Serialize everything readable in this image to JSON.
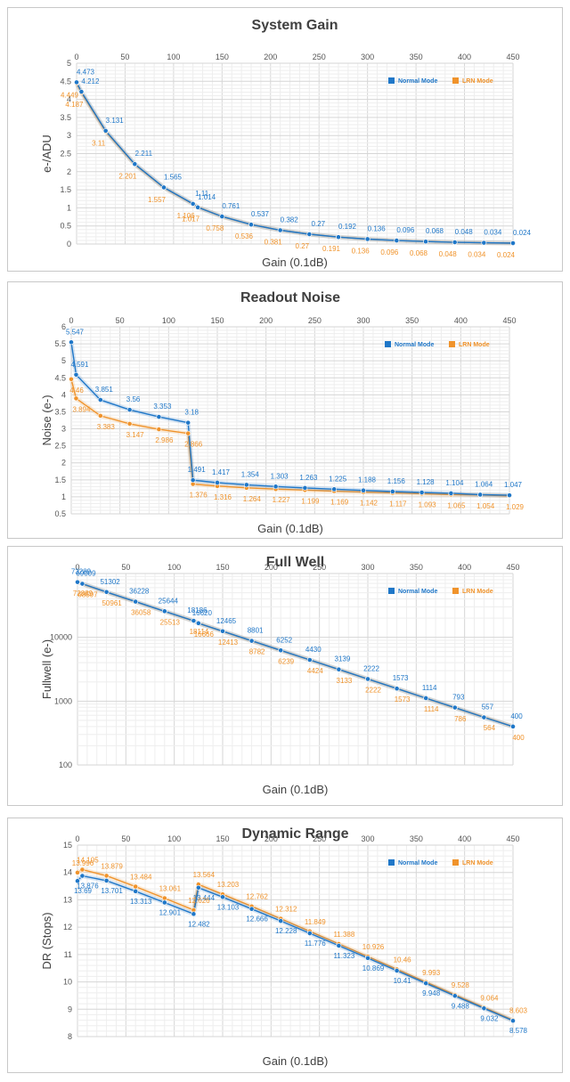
{
  "colors": {
    "normal": "#1f77c8",
    "lrn": "#f0932b",
    "grid": "#d6d6d6"
  },
  "legend": {
    "normal": "Normal Mode",
    "lrn": "LRN Mode"
  },
  "chart_data": [
    {
      "type": "line",
      "title": "System Gain",
      "xlabel": "Gain (0.1dB)",
      "ylabel": "e-/ADU",
      "xlim": [
        0,
        450
      ],
      "ylim": [
        0,
        5
      ],
      "xticks": [
        "0",
        "50",
        "100",
        "150",
        "200",
        "250",
        "300",
        "350",
        "400",
        "450"
      ],
      "yticks": [
        "0",
        "0.5",
        "1",
        "1.5",
        "2",
        "2.5",
        "3",
        "3.5",
        "4",
        "4.5",
        "5"
      ],
      "legend_position": "top-right",
      "series": [
        {
          "name": "Normal Mode",
          "x": [
            0,
            5,
            30,
            60,
            90,
            120,
            125,
            150,
            180,
            210,
            240,
            270,
            300,
            330,
            360,
            390,
            420,
            450
          ],
          "y": [
            4.473,
            4.212,
            3.131,
            2.211,
            1.565,
            1.11,
            1.014,
            0.761,
            0.537,
            0.382,
            0.27,
            0.192,
            0.136,
            0.096,
            0.068,
            0.048,
            0.034,
            0.024
          ],
          "labels": [
            "4.473",
            "4.212",
            "3.131",
            "2.211",
            "1.565",
            "1.11",
            "1.014",
            "0.761",
            "0.537",
            "0.382",
            "0.27",
            "0.192",
            "0.136",
            "0.096",
            "0.068",
            "0.048",
            "0.034",
            "0.024"
          ]
        },
        {
          "name": "LRN Mode",
          "x": [
            0,
            5,
            30,
            60,
            90,
            120,
            125,
            150,
            180,
            210,
            240,
            270,
            300,
            330,
            360,
            390,
            420,
            450
          ],
          "y": [
            4.449,
            4.187,
            3.11,
            2.201,
            1.557,
            1.106,
            1.017,
            0.758,
            0.536,
            0.381,
            0.27,
            0.191,
            0.136,
            0.096,
            0.068,
            0.048,
            0.034,
            0.024
          ],
          "labels": [
            "4.449",
            "4.187",
            "3.11",
            "2.201",
            "1.557",
            "1.106",
            "1.017",
            "0.758",
            "0.536",
            "0.381",
            "0.27",
            "0.191",
            "0.136",
            "0.096",
            "0.068",
            "0.048",
            "0.034",
            "0.024"
          ]
        }
      ]
    },
    {
      "type": "line",
      "title": "Readout Noise",
      "xlabel": "Gain (0.1dB)",
      "ylabel": "Noise (e-)",
      "xlim": [
        0,
        450
      ],
      "ylim": [
        0.5,
        6
      ],
      "xticks": [
        "0",
        "50",
        "100",
        "150",
        "200",
        "250",
        "300",
        "350",
        "400",
        "450"
      ],
      "yticks": [
        "0.5",
        "1",
        "1.5",
        "2",
        "2.5",
        "3",
        "3.5",
        "4",
        "4.5",
        "5",
        "5.5",
        "6"
      ],
      "legend_position": "top-right",
      "series": [
        {
          "name": "Normal Mode",
          "x": [
            0,
            5,
            30,
            60,
            90,
            120,
            125,
            150,
            180,
            210,
            240,
            270,
            300,
            330,
            360,
            390,
            420,
            450
          ],
          "y": [
            5.547,
            4.591,
            3.851,
            3.56,
            3.353,
            3.18,
            1.491,
            1.417,
            1.354,
            1.303,
            1.263,
            1.225,
            1.188,
            1.156,
            1.128,
            1.104,
            1.064,
            1.047
          ],
          "labels": [
            "5.547",
            "4.591",
            "3.851",
            "3.56",
            "3.353",
            "3.18",
            "1.491",
            "1.417",
            "1.354",
            "1.303",
            "1.263",
            "1.225",
            "1.188",
            "1.156",
            "1.128",
            "1.104",
            "1.064",
            "1.047"
          ]
        },
        {
          "name": "LRN Mode",
          "x": [
            0,
            5,
            30,
            60,
            90,
            120,
            125,
            150,
            180,
            210,
            240,
            270,
            300,
            330,
            360,
            390,
            420,
            450
          ],
          "y": [
            4.46,
            3.894,
            3.383,
            3.147,
            2.986,
            2.866,
            1.376,
            1.316,
            1.264,
            1.227,
            1.199,
            1.169,
            1.142,
            1.117,
            1.093,
            1.065,
            1.054,
            1.029
          ],
          "labels": [
            "4.46",
            "3.894",
            "3.383",
            "3.147",
            "2.986",
            "2.866",
            "1.376",
            "1.316",
            "1.264",
            "1.227",
            "1.199",
            "1.169",
            "1.142",
            "1.117",
            "1.093",
            "1.065",
            "1.054",
            "1.029"
          ]
        }
      ]
    },
    {
      "type": "line",
      "title": "Full Well",
      "xlabel": "Gain (0.1dB)",
      "ylabel": "Fullwell (e-)",
      "xlim": [
        0,
        450
      ],
      "ylim": [
        100,
        100000
      ],
      "yscale": "log",
      "xticks": [
        "0",
        "50",
        "100",
        "150",
        "200",
        "250",
        "300",
        "350",
        "400",
        "450"
      ],
      "yticks": [
        "100",
        "1000",
        "10000"
      ],
      "legend_position": "top-right",
      "series": [
        {
          "name": "Normal Mode",
          "x": [
            0,
            5,
            30,
            60,
            90,
            120,
            125,
            150,
            180,
            210,
            240,
            270,
            300,
            330,
            360,
            390,
            420,
            450
          ],
          "y": [
            73289,
            69009,
            51302,
            36228,
            25644,
            18186,
            16620,
            12465,
            8801,
            6252,
            4430,
            3139,
            2222,
            1573,
            1114,
            793,
            557,
            400
          ],
          "labels": [
            "73289",
            "69009",
            "51302",
            "36228",
            "25644",
            "18186",
            "16620",
            "12465",
            "8801",
            "6252",
            "4430",
            "3139",
            "2222",
            "1573",
            "1114",
            "793",
            "557",
            "400"
          ]
        },
        {
          "name": "LRN Mode",
          "x": [
            0,
            5,
            30,
            60,
            90,
            120,
            125,
            150,
            180,
            210,
            240,
            270,
            300,
            330,
            360,
            390,
            420,
            450
          ],
          "y": [
            72889,
            68597,
            50961,
            36058,
            25513,
            18114,
            16666,
            12413,
            8782,
            6239,
            4424,
            3133,
            2222,
            1573,
            1114,
            786,
            564,
            400
          ],
          "labels": [
            "72889",
            "68597",
            "50961",
            "36058",
            "25513",
            "18114",
            "16666",
            "12413",
            "8782",
            "6239",
            "4424",
            "3133",
            "2222",
            "1573",
            "1114",
            "786",
            "564",
            "400"
          ]
        }
      ]
    },
    {
      "type": "line",
      "title": "Dynamic Range",
      "xlabel": "Gain (0.1dB)",
      "ylabel": "DR (Stops)",
      "xlim": [
        0,
        450
      ],
      "ylim": [
        8,
        15
      ],
      "xticks": [
        "0",
        "50",
        "100",
        "150",
        "200",
        "250",
        "300",
        "350",
        "400",
        "450"
      ],
      "yticks": [
        "8",
        "9",
        "10",
        "11",
        "12",
        "13",
        "14",
        "15"
      ],
      "legend_position": "top-right",
      "series": [
        {
          "name": "Normal Mode",
          "x": [
            0,
            5,
            30,
            60,
            90,
            120,
            125,
            150,
            180,
            210,
            240,
            270,
            300,
            330,
            360,
            390,
            420,
            450
          ],
          "y": [
            13.69,
            13.876,
            13.701,
            13.313,
            12.901,
            12.482,
            13.444,
            13.103,
            12.666,
            12.228,
            11.776,
            11.323,
            10.869,
            10.41,
            9.948,
            9.488,
            9.032,
            8.578
          ],
          "labels": [
            "13.69",
            "13.876",
            "13.701",
            "13.313",
            "12.901",
            "12.482",
            "13.444",
            "13.103",
            "12.666",
            "12.228",
            "11.776",
            "11.323",
            "10.869",
            "10.41",
            "9.948",
            "9.488",
            "9.032",
            "8.578"
          ]
        },
        {
          "name": "LRN Mode",
          "x": [
            0,
            5,
            30,
            60,
            90,
            120,
            125,
            150,
            180,
            210,
            240,
            270,
            300,
            330,
            360,
            390,
            420,
            450
          ],
          "y": [
            13.996,
            14.105,
            13.879,
            13.484,
            13.061,
            12.626,
            13.564,
            13.203,
            12.762,
            12.312,
            11.849,
            11.388,
            10.926,
            10.46,
            9.993,
            9.528,
            9.064,
            8.603
          ],
          "labels": [
            "13.996",
            "14.105",
            "13.879",
            "13.484",
            "13.061",
            "12.626",
            "13.564",
            "13.203",
            "12.762",
            "12.312",
            "11.849",
            "11.388",
            "10.926",
            "10.46",
            "9.993",
            "9.528",
            "9.064",
            "8.603"
          ]
        }
      ]
    }
  ]
}
